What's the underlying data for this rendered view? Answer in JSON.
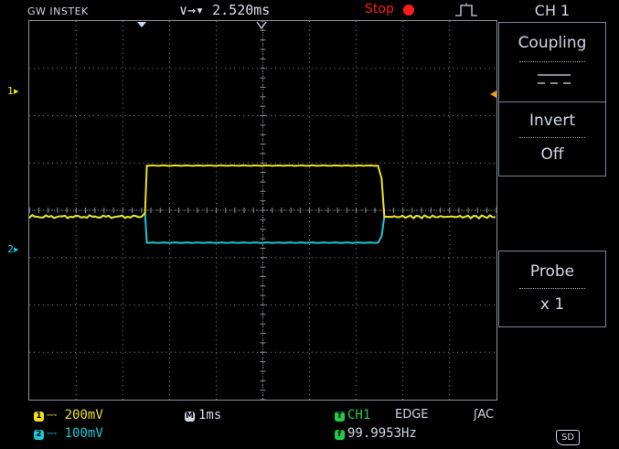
{
  "header": {
    "brand": "GW INSTEK",
    "timebase_position": "2.520ms",
    "run_status": "Stop",
    "colors": {
      "stop": "#ff1a1a"
    }
  },
  "menu": {
    "title": "CH 1",
    "items": [
      {
        "label": "Coupling",
        "value": "DC"
      },
      {
        "label": "Invert",
        "value": "Off"
      },
      {
        "label": "Probe",
        "value": "x 1"
      }
    ]
  },
  "markers": {
    "ch1": "1",
    "ch2": "2"
  },
  "status": {
    "ch1_scale": "200mV",
    "ch2_scale": "100mV",
    "timebase": "1ms",
    "trigger_source": "CH1",
    "trigger_type": "EDGE",
    "trigger_coupling": "AC",
    "frequency": "99.9953Hz",
    "storage": "SD"
  },
  "colors": {
    "ch1": "#f0e020",
    "ch2": "#18c8d8",
    "trigger_badge": "#22cc44",
    "grid": "#8a8f9a"
  },
  "signals": {
    "ch1": {
      "baseline_div": 0.0,
      "high_div": 1.2,
      "rise_time_div": 0.55,
      "fall_time_div": 2.55
    },
    "ch2": {
      "baseline_div": 0.0,
      "low_div": -0.55,
      "rise_time_div": 0.55,
      "fall_time_div": 2.55
    }
  }
}
